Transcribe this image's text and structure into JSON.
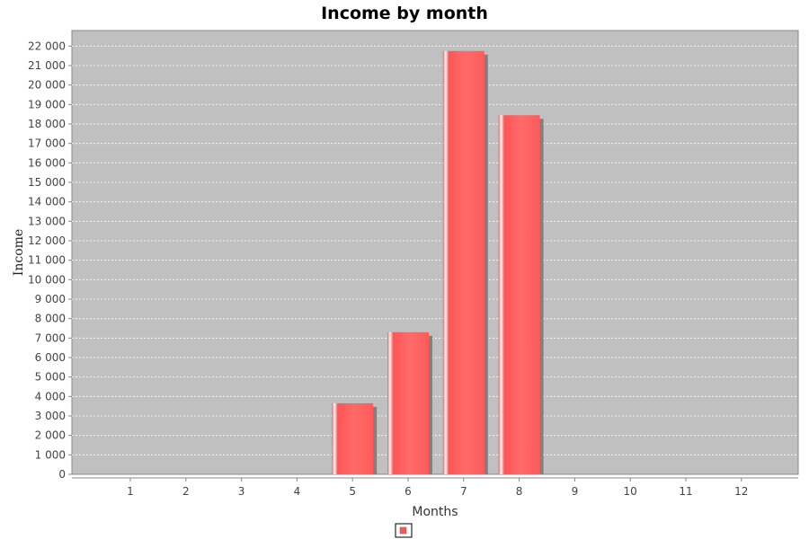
{
  "chart_data": {
    "type": "bar",
    "title": "Income by month",
    "xlabel": "Months",
    "ylabel": "Income",
    "categories": [
      "1",
      "2",
      "3",
      "4",
      "5",
      "6",
      "7",
      "8",
      "9",
      "10",
      "11",
      "12"
    ],
    "series": [
      {
        "values": [
          0,
          0,
          0,
          0,
          3650,
          7300,
          21750,
          18450,
          0,
          0,
          0,
          0
        ]
      }
    ],
    "ylim": [
      0,
      22800
    ],
    "ytick_step": 1000,
    "ytick_labels": [
      "0",
      "1 000",
      "2 000",
      "3 000",
      "4 000",
      "5 000",
      "6 000",
      "7 000",
      "8 000",
      "9 000",
      "10 000",
      "11 000",
      "12 000",
      "13 000",
      "14 000",
      "15 000",
      "16 000",
      "17 000",
      "18 000",
      "19 000",
      "20 000",
      "21 000",
      "22 000"
    ],
    "grid": true,
    "legend": "bottom-center",
    "colors": {
      "bar": "#ff5555",
      "bar_highlight": "#ffd9d9",
      "bar_shadow": "#808080",
      "plot_background": "#c0c0c0",
      "gridline": "#ffffff"
    }
  }
}
